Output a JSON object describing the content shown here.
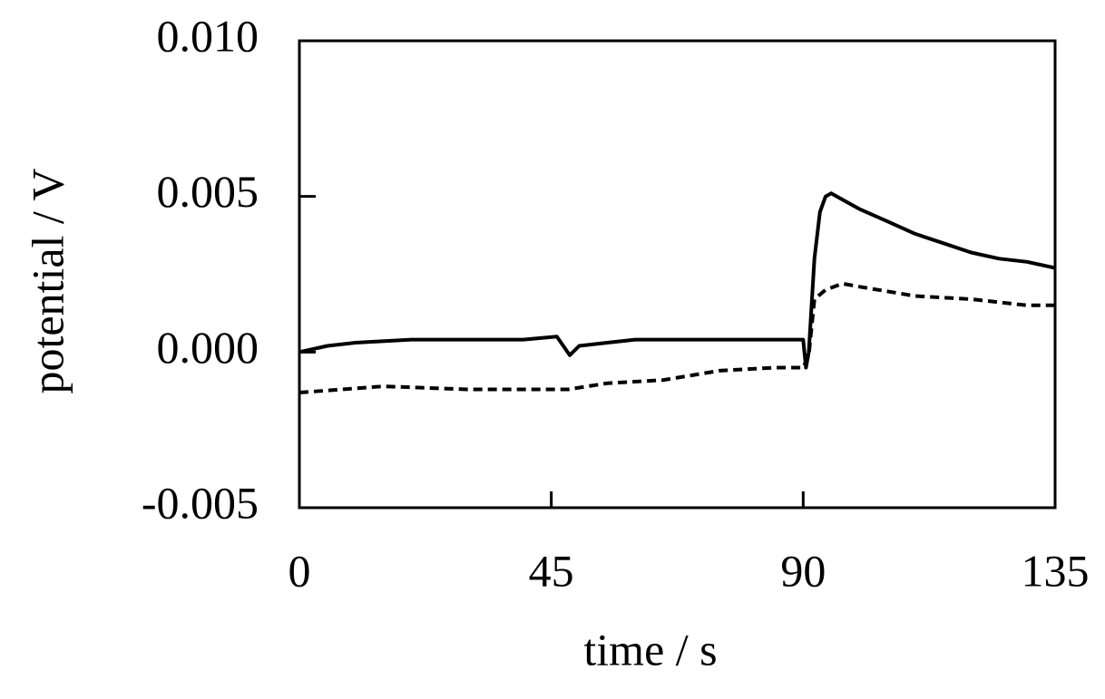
{
  "chart_data": {
    "type": "line",
    "xlabel": "time / s",
    "ylabel": "potential / V",
    "xlim": [
      0,
      135
    ],
    "xticks": [
      0,
      45,
      90,
      135
    ],
    "ylim": [
      -0.005,
      0.01
    ],
    "yticks": [
      {
        "value": -0.005,
        "label": "-0.005"
      },
      {
        "value": 0,
        "label": "0.000"
      },
      {
        "value": 0.005,
        "label": "0.005"
      },
      {
        "value": 0.01,
        "label": "0.010"
      }
    ],
    "series": [
      {
        "color": "#000000",
        "line_style": "solid",
        "x": [
          0,
          5,
          10,
          20,
          30,
          40,
          46,
          48.3,
          50,
          55,
          60,
          70,
          80,
          90,
          90.5,
          91,
          92,
          93,
          94,
          95,
          97,
          100,
          105,
          110,
          115,
          120,
          125,
          130,
          135
        ],
        "values": [
          0.0,
          0.0002,
          0.0003,
          0.0004,
          0.0004,
          0.0004,
          0.0005,
          -0.0001,
          0.0002,
          0.0003,
          0.0004,
          0.0004,
          0.0004,
          0.0004,
          -0.0005,
          0.0,
          0.003,
          0.0045,
          0.005,
          0.0051,
          0.0049,
          0.0046,
          0.0042,
          0.0038,
          0.0035,
          0.0032,
          0.003,
          0.0029,
          0.0027
        ]
      },
      {
        "color": "#000000",
        "line_style": "dashed",
        "x": [
          0,
          15,
          30,
          45,
          48,
          55,
          65,
          75,
          85,
          90,
          91,
          92,
          94,
          97,
          100,
          110,
          120,
          130,
          135
        ],
        "values": [
          -0.0013,
          -0.0011,
          -0.0012,
          -0.0012,
          -0.0012,
          -0.001,
          -0.0009,
          -0.0006,
          -0.0005,
          -0.0005,
          -0.0001,
          0.0017,
          0.002,
          0.0022,
          0.0021,
          0.0018,
          0.0017,
          0.0015,
          0.0015
        ]
      }
    ]
  }
}
